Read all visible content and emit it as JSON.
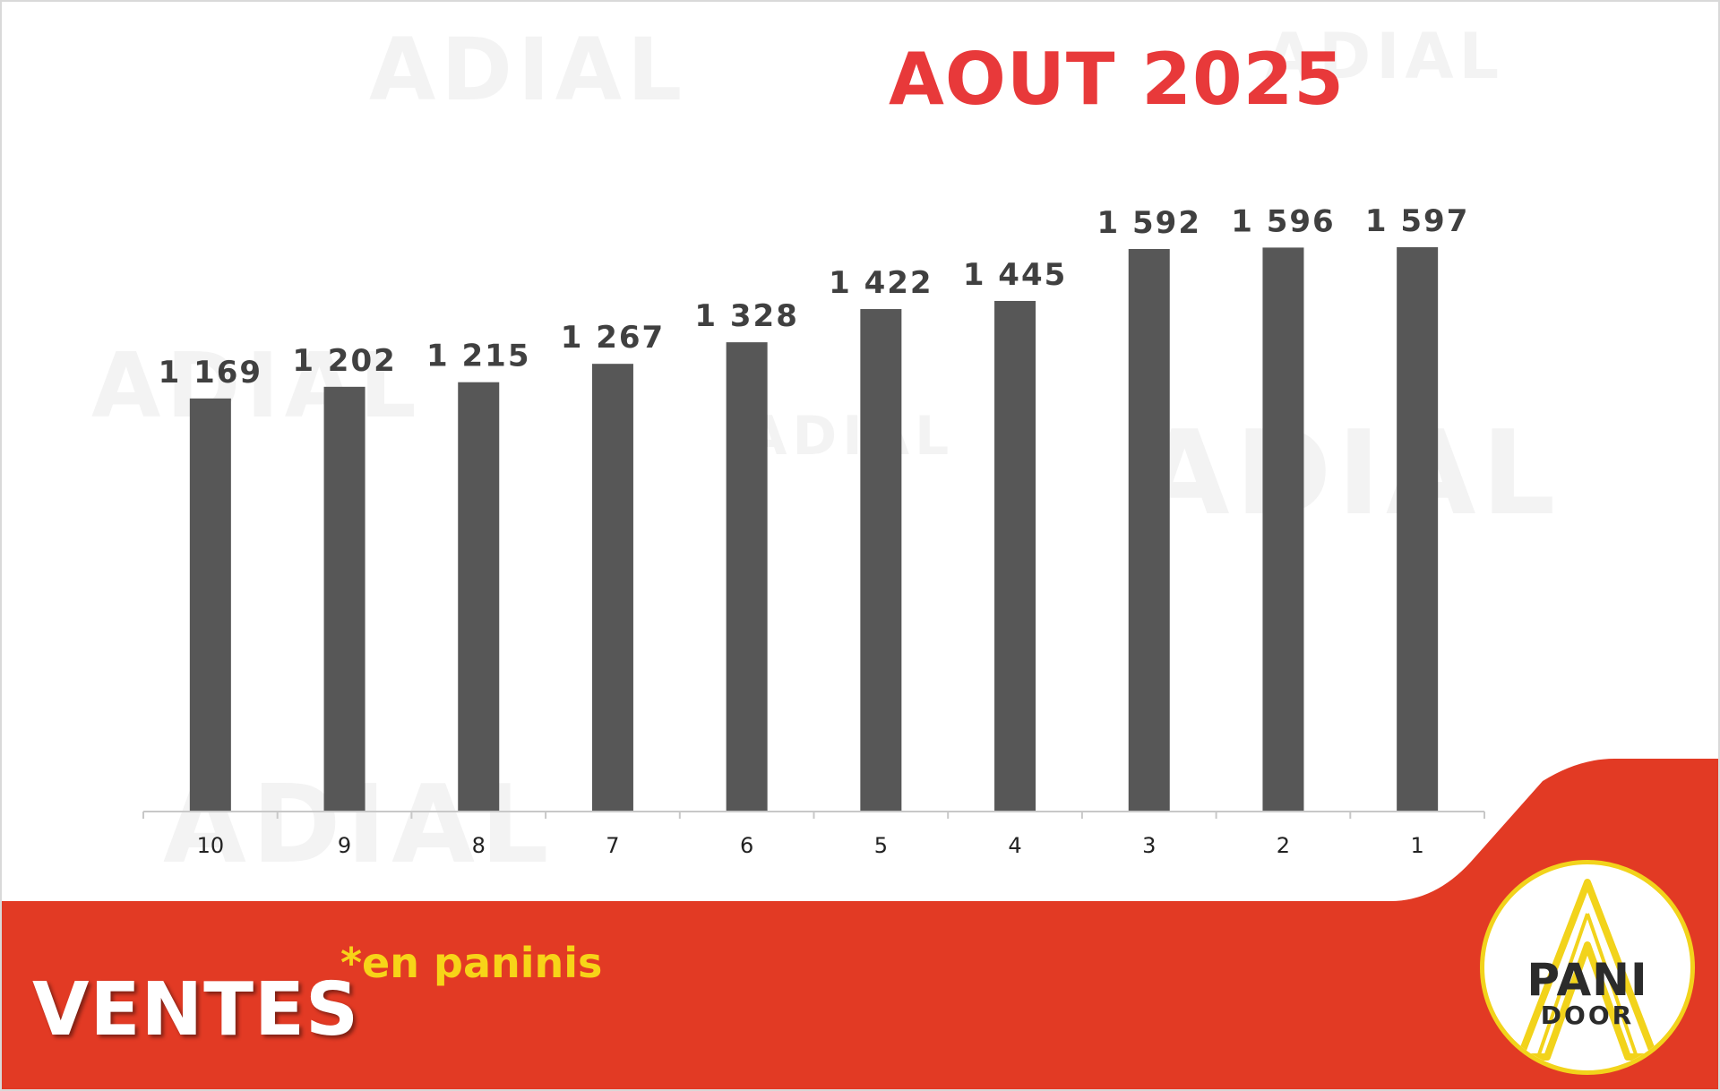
{
  "header": {
    "title": "AOUT 2025"
  },
  "footer": {
    "label": "VENTES",
    "unit_note": "*en paninis",
    "brand_color": "#e23a24",
    "note_color": "#f7d418"
  },
  "logo": {
    "line1": "PANI",
    "line2": "DOOR",
    "ring_color": "#f2d31b"
  },
  "watermark": {
    "text": "ADIAL"
  },
  "chart_data": {
    "type": "bar",
    "title": "AOUT 2025",
    "categories": [
      "10",
      "9",
      "8",
      "7",
      "6",
      "5",
      "4",
      "3",
      "2",
      "1"
    ],
    "values": [
      1169,
      1202,
      1215,
      1267,
      1328,
      1422,
      1445,
      1592,
      1596,
      1597
    ],
    "xlabel": "",
    "ylabel": "",
    "ylim": [
      0,
      1597
    ],
    "grid": false,
    "legend": "none",
    "bar_color": "#575757",
    "data_labels": true
  }
}
